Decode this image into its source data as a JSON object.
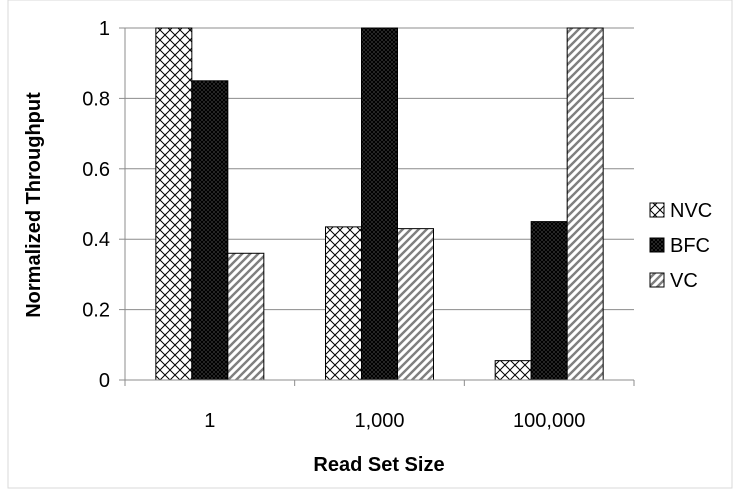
{
  "chart_data": {
    "type": "bar",
    "title": "",
    "xlabel": "Read Set Size",
    "ylabel": "Normalized Throughput",
    "categories": [
      "1",
      "1,000",
      "100,000"
    ],
    "ylim": [
      0,
      1
    ],
    "yticks": [
      "0",
      "0.2",
      "0.4",
      "0.6",
      "0.8",
      "1"
    ],
    "grid": true,
    "legend_position": "right",
    "series": [
      {
        "name": "NVC",
        "pattern": "crosshatch",
        "values": [
          1.0,
          0.435,
          0.055
        ]
      },
      {
        "name": "BFC",
        "pattern": "dense-dark-crosshatch",
        "values": [
          0.85,
          1.0,
          0.45
        ]
      },
      {
        "name": "VC",
        "pattern": "diagonal-stripes",
        "values": [
          0.36,
          0.43,
          1.0
        ]
      }
    ]
  }
}
